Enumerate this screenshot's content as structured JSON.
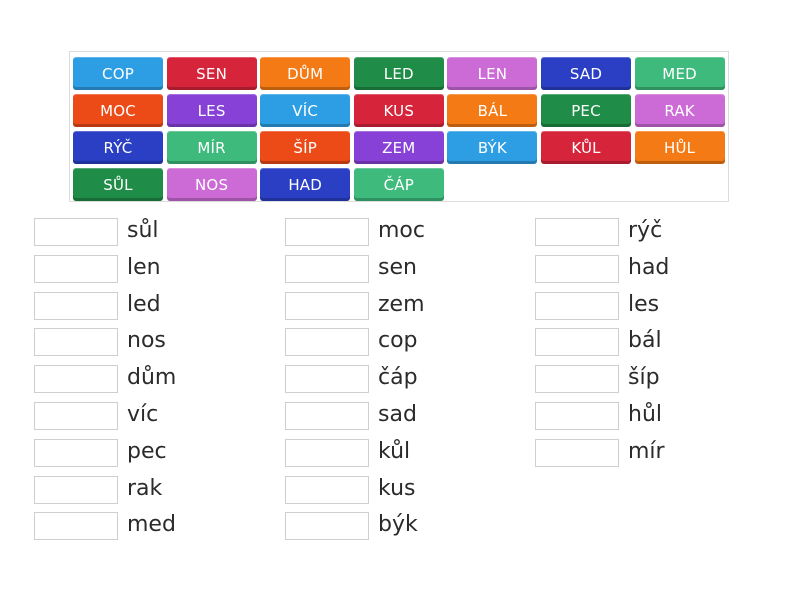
{
  "tiles": [
    {
      "label": "COP",
      "color": "#2d9ee3"
    },
    {
      "label": "SEN",
      "color": "#d6243b"
    },
    {
      "label": "DŮM",
      "color": "#f47a15"
    },
    {
      "label": "LED",
      "color": "#1f8c47"
    },
    {
      "label": "LEN",
      "color": "#cc6bd6"
    },
    {
      "label": "SAD",
      "color": "#2a3fc4"
    },
    {
      "label": "MED",
      "color": "#3dba7c"
    },
    {
      "label": "MOC",
      "color": "#ec4a16"
    },
    {
      "label": "LES",
      "color": "#8741d6"
    },
    {
      "label": "VÍC",
      "color": "#2d9ee3"
    },
    {
      "label": "KUS",
      "color": "#d6243b"
    },
    {
      "label": "BÁL",
      "color": "#f47a15"
    },
    {
      "label": "PEC",
      "color": "#1f8c47"
    },
    {
      "label": "RAK",
      "color": "#cc6bd6"
    },
    {
      "label": "RÝČ",
      "color": "#2a3fc4"
    },
    {
      "label": "MÍR",
      "color": "#3dba7c"
    },
    {
      "label": "ŠÍP",
      "color": "#ec4a16"
    },
    {
      "label": "ZEM",
      "color": "#8741d6"
    },
    {
      "label": "BÝK",
      "color": "#2d9ee3"
    },
    {
      "label": "KŮL",
      "color": "#d6243b"
    },
    {
      "label": "HŮL",
      "color": "#f47a15"
    },
    {
      "label": "SŮL",
      "color": "#1f8c47"
    },
    {
      "label": "NOS",
      "color": "#cc6bd6"
    },
    {
      "label": "HAD",
      "color": "#2a3fc4"
    },
    {
      "label": "ČÁP",
      "color": "#3dba7c"
    }
  ],
  "columns": [
    {
      "words": [
        "sůl",
        "len",
        "led",
        "nos",
        "dům",
        "víc",
        "pec",
        "rak",
        "med"
      ]
    },
    {
      "words": [
        "moc",
        "sen",
        "zem",
        "cop",
        "čáp",
        "sad",
        "kůl",
        "kus",
        "býk"
      ]
    },
    {
      "words": [
        "rýč",
        "had",
        "les",
        "bál",
        "šíp",
        "hůl",
        "mír"
      ]
    }
  ]
}
